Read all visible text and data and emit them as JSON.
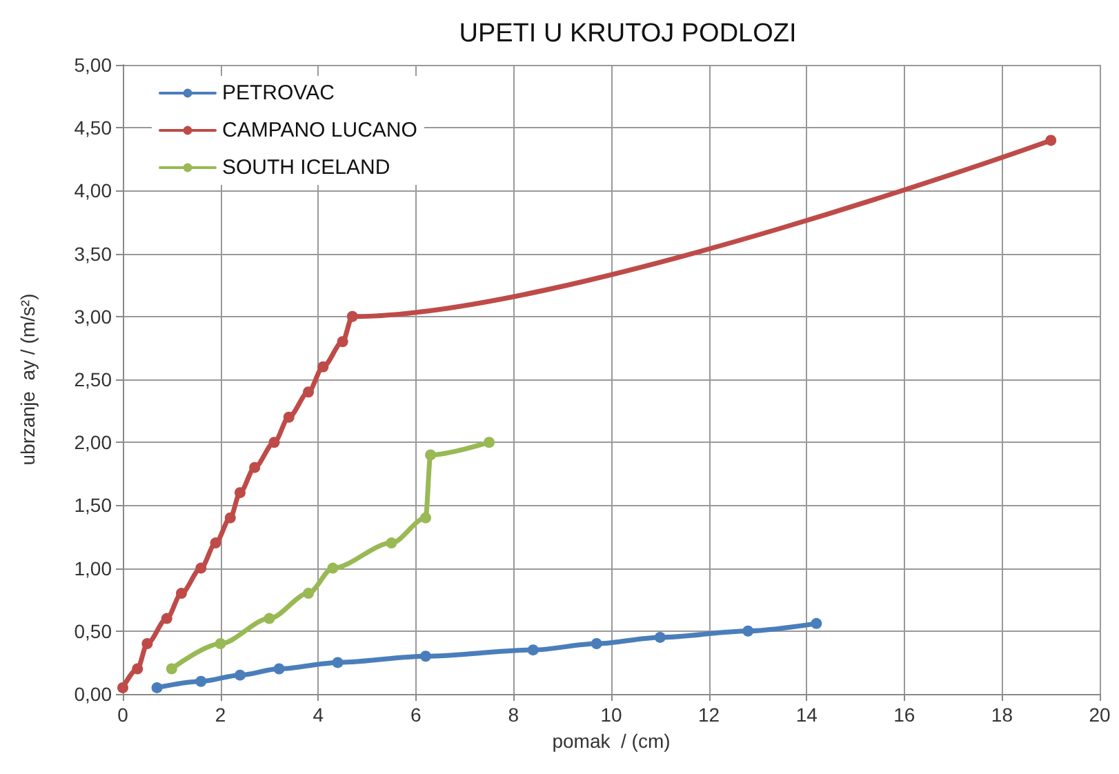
{
  "chart_data": {
    "type": "line",
    "title": "UPETI U KRUTOJ PODLOZI",
    "xlabel": "pomak  / (cm)",
    "ylabel": "ubrzanje  ay / (m/s²)",
    "xlim": [
      0,
      20
    ],
    "xticks": [
      0,
      2,
      4,
      6,
      8,
      10,
      12,
      14,
      16,
      18,
      20
    ],
    "ylim": [
      0,
      5
    ],
    "yticks": [
      {
        "value": 0,
        "label": "0,00"
      },
      {
        "value": 0.5,
        "label": "0,50"
      },
      {
        "value": 1,
        "label": "1,00"
      },
      {
        "value": 1.5,
        "label": "1,50"
      },
      {
        "value": 2,
        "label": "2,00"
      },
      {
        "value": 2.5,
        "label": "2,50"
      },
      {
        "value": 3,
        "label": "3,00"
      },
      {
        "value": 3.5,
        "label": "3,50"
      },
      {
        "value": 4,
        "label": "4,00"
      },
      {
        "value": 4.5,
        "label": "4,50"
      },
      {
        "value": 5,
        "label": "5,00"
      }
    ],
    "grid": true,
    "legend": "top left",
    "marker": "circle",
    "line_style": "solid",
    "series": [
      {
        "name": "PETROVAC",
        "color": "#4a7ebb",
        "x": [
          0.7,
          1.6,
          2.4,
          3.2,
          4.4,
          6.2,
          8.4,
          9.7,
          11,
          12.8,
          14.2
        ],
        "values": [
          0.05,
          0.1,
          0.15,
          0.2,
          0.25,
          0.3,
          0.35,
          0.4,
          0.45,
          0.5,
          0.56
        ]
      },
      {
        "name": "CAMPANO LUCANO",
        "color": "#be4b48",
        "x": [
          0,
          0.3,
          0.5,
          0.9,
          1.2,
          1.6,
          1.9,
          2.2,
          2.4,
          2.7,
          3.1,
          3.4,
          3.8,
          4.1,
          4.5,
          4.7,
          19
        ],
        "values": [
          0.05,
          0.2,
          0.4,
          0.6,
          0.8,
          1.0,
          1.2,
          1.4,
          1.6,
          1.8,
          2.0,
          2.2,
          2.4,
          2.6,
          2.8,
          3.0,
          4.4
        ]
      },
      {
        "name": "SOUTH ICELAND",
        "color": "#98b954",
        "x": [
          1.0,
          2.0,
          3.0,
          3.8,
          4.3,
          5.5,
          6.2,
          6.3,
          7.5
        ],
        "values": [
          0.2,
          0.4,
          0.6,
          0.8,
          1.0,
          1.2,
          1.4,
          1.9,
          2.0
        ]
      }
    ]
  }
}
